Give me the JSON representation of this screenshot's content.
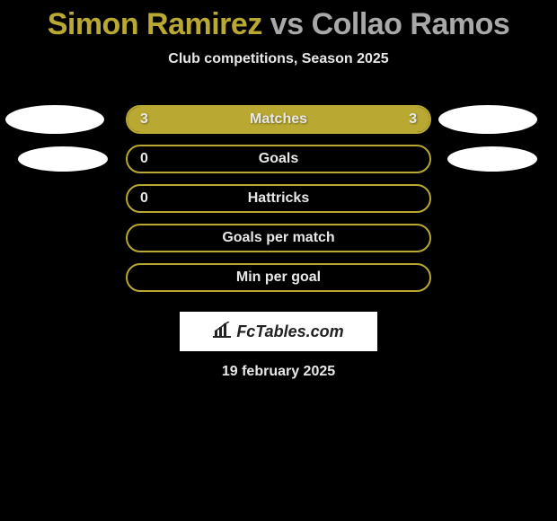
{
  "title": {
    "player1": "Simon Ramirez",
    "vs": "vs",
    "player2": "Collao Ramos",
    "player1_color": "#b9a832",
    "vs_color": "#a8a8a8",
    "player2_color": "#a8a8a8",
    "fontsize": 34
  },
  "subtitle": "Club competitions, Season 2025",
  "background_color": "#000000",
  "bar_border_color": "#b9a832",
  "bar_fill_color": "#b9a832",
  "text_color": "#e8e8e8",
  "stats": [
    {
      "label": "Matches",
      "left_value": "3",
      "right_value": "3",
      "left_fill_pct": 50,
      "right_fill_pct": 50,
      "show_avatar_left": true,
      "show_avatar_right": true,
      "avatar_size": "large"
    },
    {
      "label": "Goals",
      "left_value": "0",
      "right_value": "",
      "left_fill_pct": 0,
      "right_fill_pct": 0,
      "show_avatar_left": true,
      "show_avatar_right": true,
      "avatar_size": "medium"
    },
    {
      "label": "Hattricks",
      "left_value": "0",
      "right_value": "",
      "left_fill_pct": 0,
      "right_fill_pct": 0,
      "show_avatar_left": false,
      "show_avatar_right": false,
      "avatar_size": "none"
    },
    {
      "label": "Goals per match",
      "left_value": "",
      "right_value": "",
      "left_fill_pct": 0,
      "right_fill_pct": 0,
      "show_avatar_left": false,
      "show_avatar_right": false,
      "avatar_size": "none"
    },
    {
      "label": "Min per goal",
      "left_value": "",
      "right_value": "",
      "left_fill_pct": 0,
      "right_fill_pct": 0,
      "show_avatar_left": false,
      "show_avatar_right": false,
      "avatar_size": "none"
    }
  ],
  "logo": {
    "text": "FcTables.com",
    "background_color": "#ffffff",
    "text_color": "#222222"
  },
  "date": "19 february 2025"
}
